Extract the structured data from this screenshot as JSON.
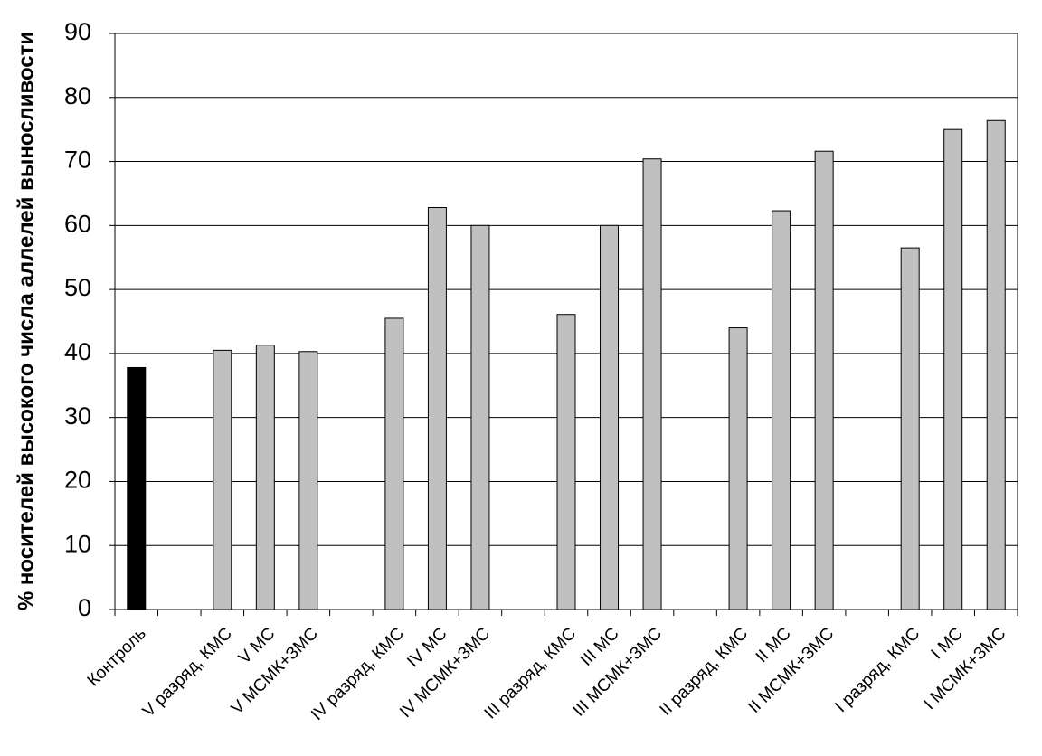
{
  "chart_data": {
    "type": "bar",
    "y_label": "% носителей  высокого числа аллелей выносливости",
    "categories": [
      "Контроль",
      null,
      "V разряд, КМС",
      "V МС",
      "V МСМК+ЗМС",
      null,
      "IV разряд, КМС",
      "IV МС",
      "IV МСМК+ЗМС",
      null,
      "III разряд, КМС",
      "III МС",
      "III МСМК+ЗМС",
      null,
      "II разряд, КМС",
      "II МС",
      "II МСМК+ЗМС",
      null,
      "I разряд, КМС",
      "I МС",
      "I МСМК+ЗМС"
    ],
    "values": [
      37.8,
      null,
      40.5,
      41.3,
      40.3,
      null,
      45.5,
      62.8,
      60,
      null,
      46.1,
      60,
      70.4,
      null,
      44,
      62.3,
      71.6,
      null,
      56.5,
      75,
      76.4
    ],
    "colors": [
      "#000000",
      null,
      "#c0c0c0",
      "#c0c0c0",
      "#c0c0c0",
      null,
      "#c0c0c0",
      "#c0c0c0",
      "#c0c0c0",
      null,
      "#c0c0c0",
      "#c0c0c0",
      "#c0c0c0",
      null,
      "#c0c0c0",
      "#c0c0c0",
      "#c0c0c0",
      null,
      "#c0c0c0",
      "#c0c0c0",
      "#c0c0c0"
    ],
    "ylim": [
      0,
      90
    ],
    "yticks": [
      0,
      10,
      20,
      30,
      40,
      50,
      60,
      70,
      80,
      90
    ],
    "grid": true
  }
}
